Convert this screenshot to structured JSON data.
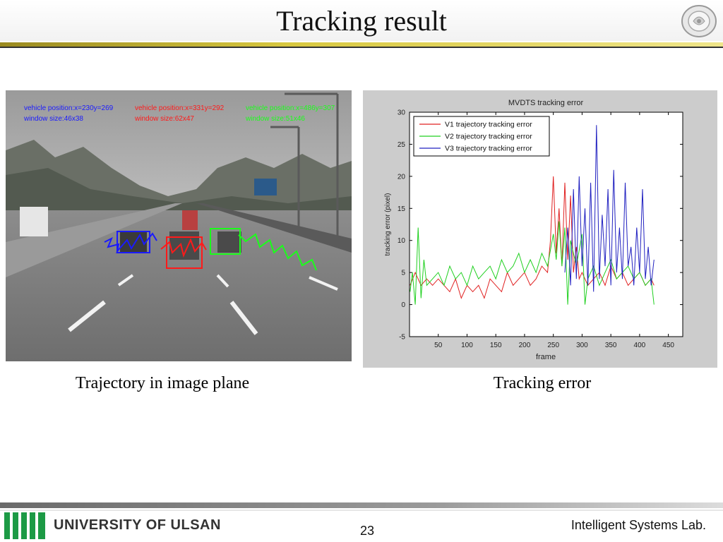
{
  "slide": {
    "title": "Tracking result",
    "page_number": "23",
    "footer_org": "UNIVERSITY OF ULSAN",
    "footer_lab": "Intelligent Systems Lab."
  },
  "left_figure": {
    "caption": "Trajectory in image plane",
    "overlays": [
      {
        "position": "vehicle position:x=230y=269",
        "window": "window size:46x38",
        "color": "#1a1aff"
      },
      {
        "position": "vehicle position:x=331y=292",
        "window": "window size:62x47",
        "color": "#ff1a1a"
      },
      {
        "position": "vehicle position:x=486y=307",
        "window": "window size:51x46",
        "color": "#1aff1a"
      }
    ]
  },
  "right_figure": {
    "caption": "Tracking error"
  },
  "chart_data": {
    "type": "line",
    "title": "MVDTS tracking error",
    "xlabel": "frame",
    "ylabel": "tracking error (pixel)",
    "xlim": [
      0,
      475
    ],
    "ylim": [
      -5,
      30
    ],
    "xticks": [
      50,
      100,
      150,
      200,
      250,
      300,
      350,
      400,
      450
    ],
    "yticks": [
      -5,
      0,
      5,
      10,
      15,
      20,
      25,
      30
    ],
    "legend_position": "top-left",
    "grid": false,
    "series": [
      {
        "name": "V1 trajectory tracking error",
        "color": "#e02020",
        "x": [
          1,
          10,
          20,
          30,
          40,
          50,
          60,
          70,
          80,
          90,
          100,
          110,
          120,
          130,
          140,
          150,
          160,
          170,
          180,
          190,
          200,
          210,
          220,
          230,
          240,
          245,
          250,
          255,
          260,
          265,
          270,
          275,
          280,
          285,
          290,
          295,
          300,
          310,
          320,
          330,
          340,
          350,
          360,
          370,
          380,
          390,
          400,
          410,
          420,
          425
        ],
        "y": [
          3,
          5,
          3,
          4,
          3,
          4,
          3,
          2,
          4,
          1,
          3,
          2,
          3,
          1,
          4,
          3,
          2,
          5,
          3,
          4,
          5,
          3,
          4,
          6,
          5,
          10,
          20,
          8,
          15,
          6,
          19,
          7,
          17,
          5,
          9,
          4,
          5,
          3,
          4,
          5,
          3,
          6,
          4,
          5,
          3,
          4,
          5,
          3,
          4,
          3
        ]
      },
      {
        "name": "V2 trajectory tracking error",
        "color": "#20d020",
        "x": [
          1,
          5,
          10,
          15,
          20,
          25,
          30,
          40,
          50,
          60,
          70,
          80,
          90,
          100,
          110,
          120,
          130,
          140,
          150,
          160,
          170,
          180,
          190,
          200,
          210,
          220,
          230,
          240,
          250,
          255,
          260,
          265,
          270,
          275,
          280,
          290,
          300,
          305,
          310,
          320,
          330,
          340,
          350,
          360,
          370,
          380,
          390,
          400,
          410,
          420,
          425
        ],
        "y": [
          2,
          5,
          0,
          12,
          1,
          7,
          3,
          4,
          5,
          3,
          6,
          4,
          5,
          3,
          6,
          4,
          5,
          6,
          4,
          7,
          5,
          6,
          8,
          5,
          7,
          5,
          8,
          6,
          11,
          7,
          13,
          6,
          12,
          0,
          10,
          6,
          11,
          0,
          4,
          6,
          3,
          5,
          7,
          4,
          5,
          6,
          4,
          5,
          3,
          4,
          0
        ]
      },
      {
        "name": "V3 trajectory tracking error",
        "color": "#2020c0",
        "x": [
          270,
          275,
          280,
          285,
          290,
          295,
          300,
          305,
          310,
          315,
          320,
          325,
          330,
          335,
          340,
          345,
          350,
          355,
          360,
          365,
          370,
          375,
          380,
          385,
          390,
          395,
          400,
          405,
          410,
          415,
          420,
          425
        ],
        "y": [
          5,
          12,
          3,
          18,
          4,
          20,
          6,
          15,
          3,
          19,
          2,
          28,
          4,
          14,
          6,
          18,
          3,
          21,
          5,
          12,
          4,
          19,
          6,
          9,
          3,
          12,
          5,
          18,
          4,
          9,
          3,
          7
        ]
      }
    ]
  }
}
